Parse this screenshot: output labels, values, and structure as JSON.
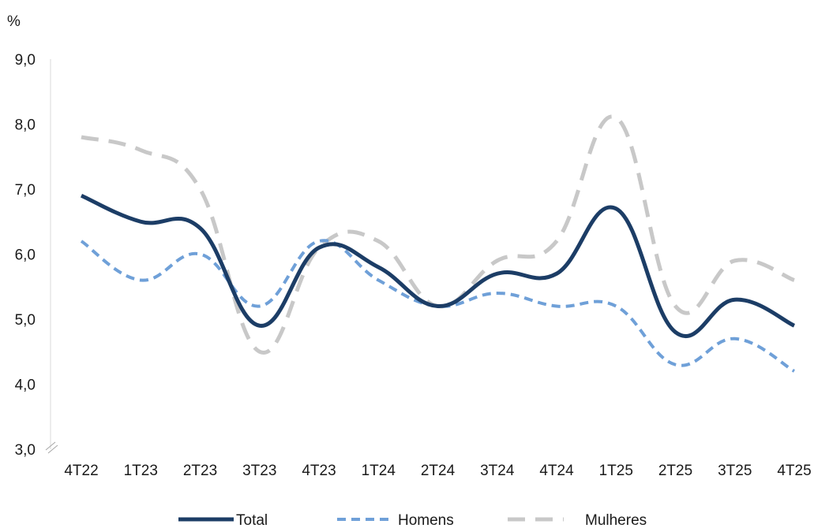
{
  "chart_data": {
    "type": "line",
    "ylabel": "%",
    "ylim": [
      3.0,
      9.0
    ],
    "yticks": [
      "3,0",
      "4,0",
      "5,0",
      "6,0",
      "7,0",
      "8,0",
      "9,0"
    ],
    "categories": [
      "4T22",
      "1T23",
      "2T23",
      "3T23",
      "4T23",
      "1T24",
      "2T24",
      "3T24",
      "4T24",
      "1T25",
      "2T25",
      "3T25",
      "4T25"
    ],
    "series": [
      {
        "name": "Total",
        "values": [
          6.9,
          6.5,
          6.4,
          4.9,
          6.1,
          5.8,
          5.2,
          5.7,
          5.7,
          6.7,
          4.8,
          5.3,
          4.9
        ],
        "color": "#1c3d66",
        "style": "solid"
      },
      {
        "name": "Homens",
        "values": [
          6.2,
          5.6,
          6.0,
          5.2,
          6.2,
          5.6,
          5.2,
          5.4,
          5.2,
          5.2,
          4.3,
          4.7,
          4.2
        ],
        "color": "#6fa0d8",
        "style": "dashed"
      },
      {
        "name": "Mulheres",
        "values": [
          7.8,
          7.6,
          7.0,
          4.5,
          6.1,
          6.2,
          5.2,
          5.9,
          6.2,
          8.1,
          5.2,
          5.9,
          5.6
        ],
        "color": "#c8c8c8",
        "style": "dashed"
      }
    ],
    "grid": false,
    "legend_position": "bottom",
    "axis_break": true
  }
}
